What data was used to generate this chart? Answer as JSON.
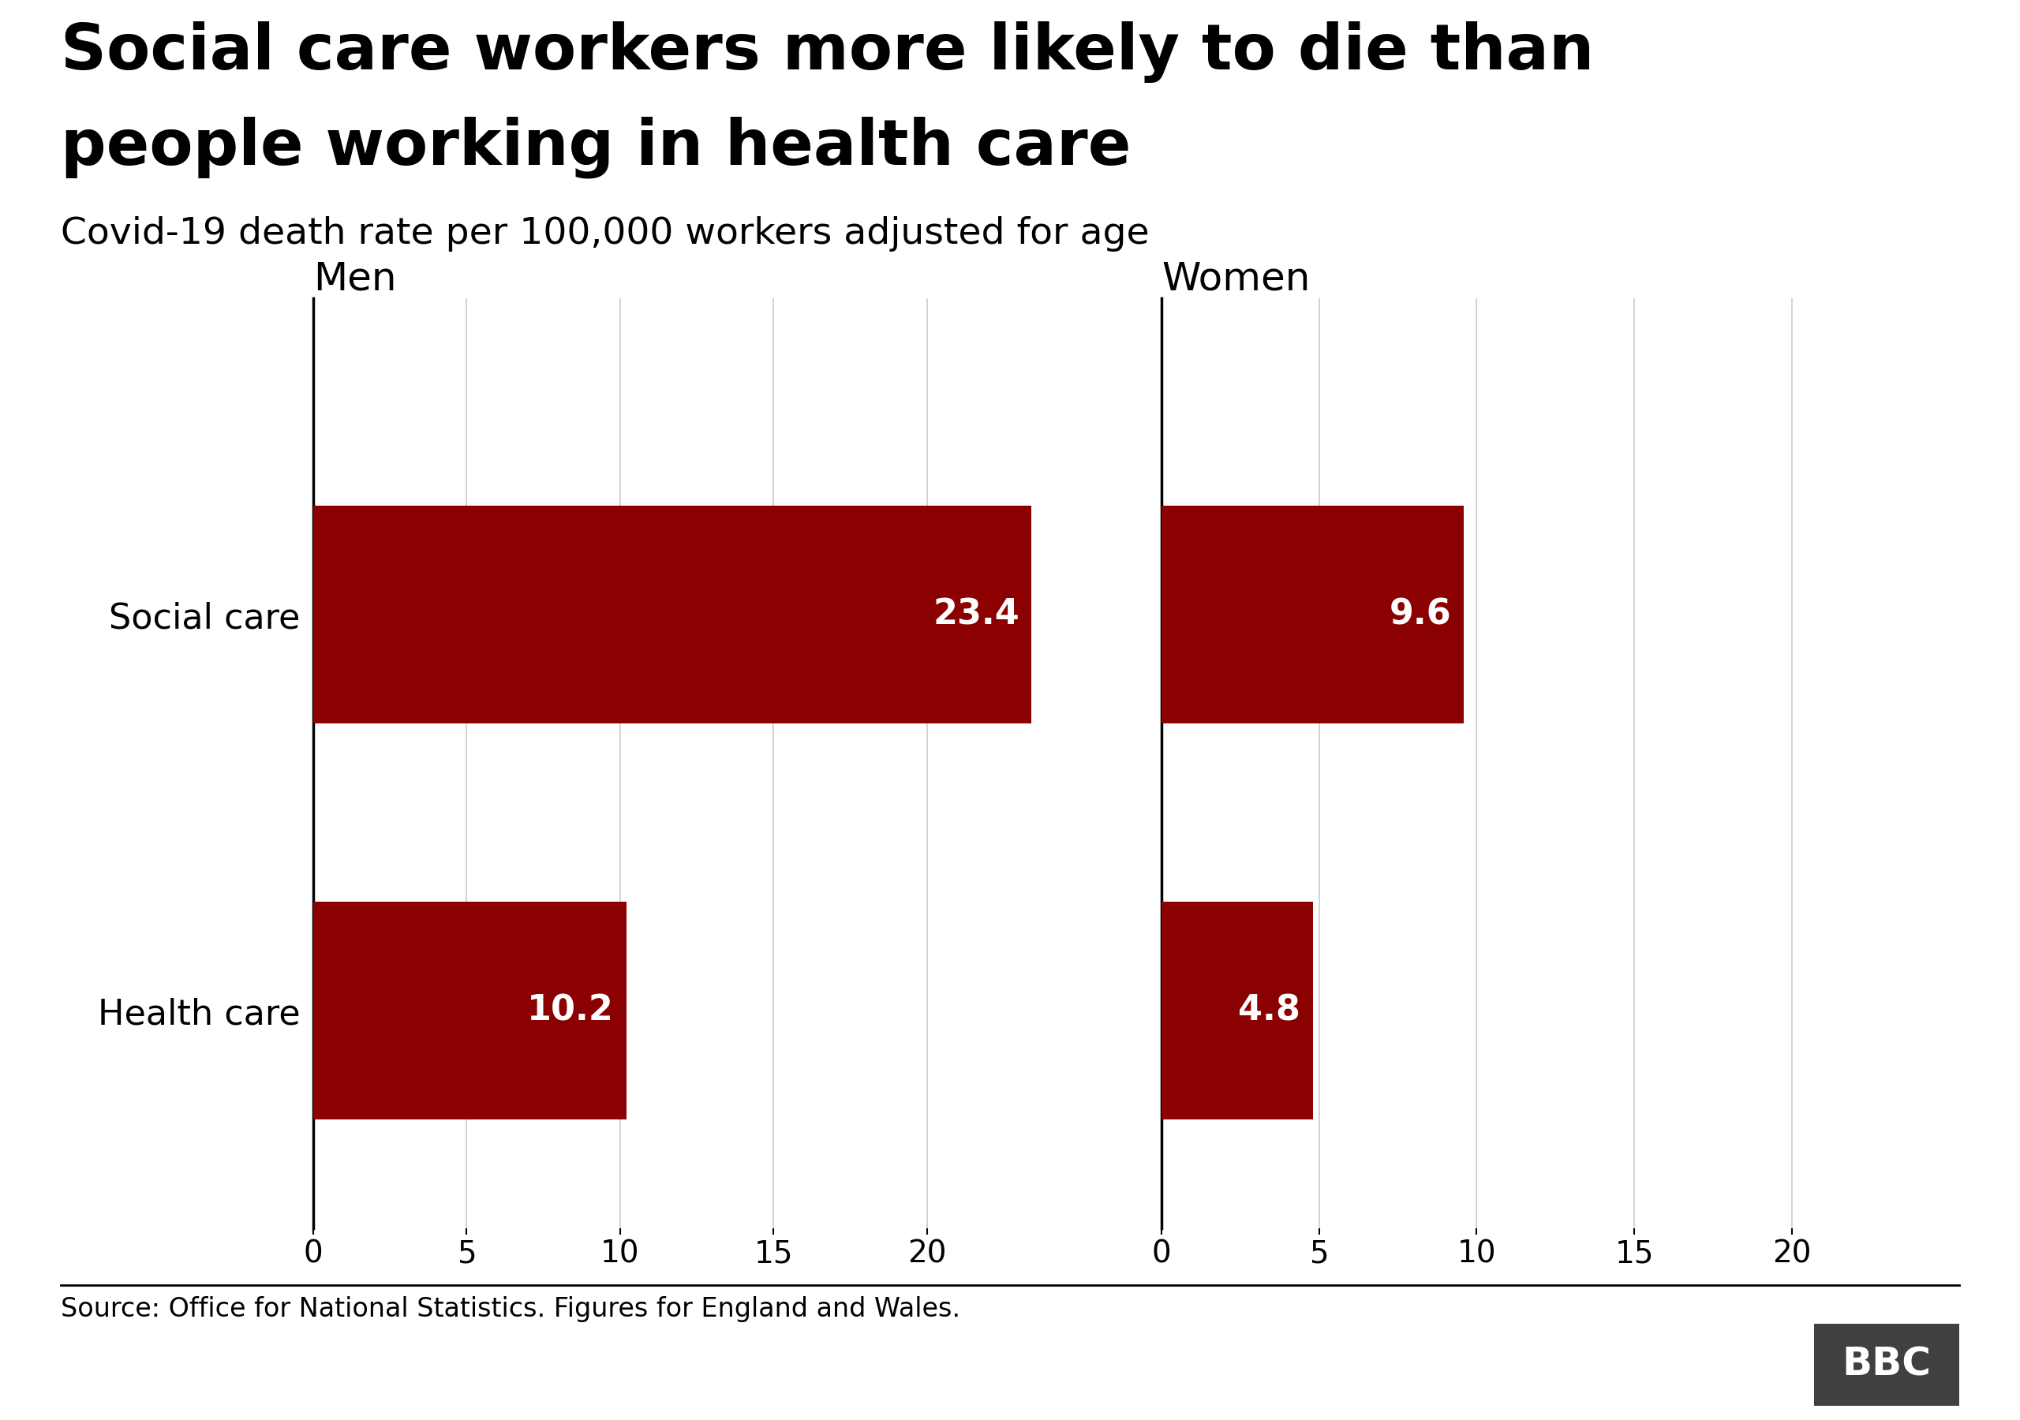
{
  "title_line1": "Social care workers more likely to die than",
  "title_line2": "people working in health care",
  "subtitle": "Covid-19 death rate per 100,000 workers adjusted for age",
  "categories": [
    "Social care",
    "Health care"
  ],
  "men_values": [
    23.4,
    10.2
  ],
  "women_values": [
    9.6,
    4.8
  ],
  "bar_color": "#8B0000",
  "men_label": "Men",
  "women_label": "Women",
  "xticks": [
    0,
    5,
    10,
    15,
    20
  ],
  "xlim": 25,
  "source_text": "Source: Office for National Statistics. Figures for England and Wales.",
  "bbc_text": "BBC",
  "background_color": "#ffffff",
  "bar_label_color": "#ffffff",
  "title_fontsize": 58,
  "subtitle_fontsize": 34,
  "category_label_fontsize": 32,
  "tick_fontsize": 28,
  "source_fontsize": 24,
  "value_fontsize": 32,
  "section_label_fontsize": 36,
  "bbc_fontsize": 36
}
